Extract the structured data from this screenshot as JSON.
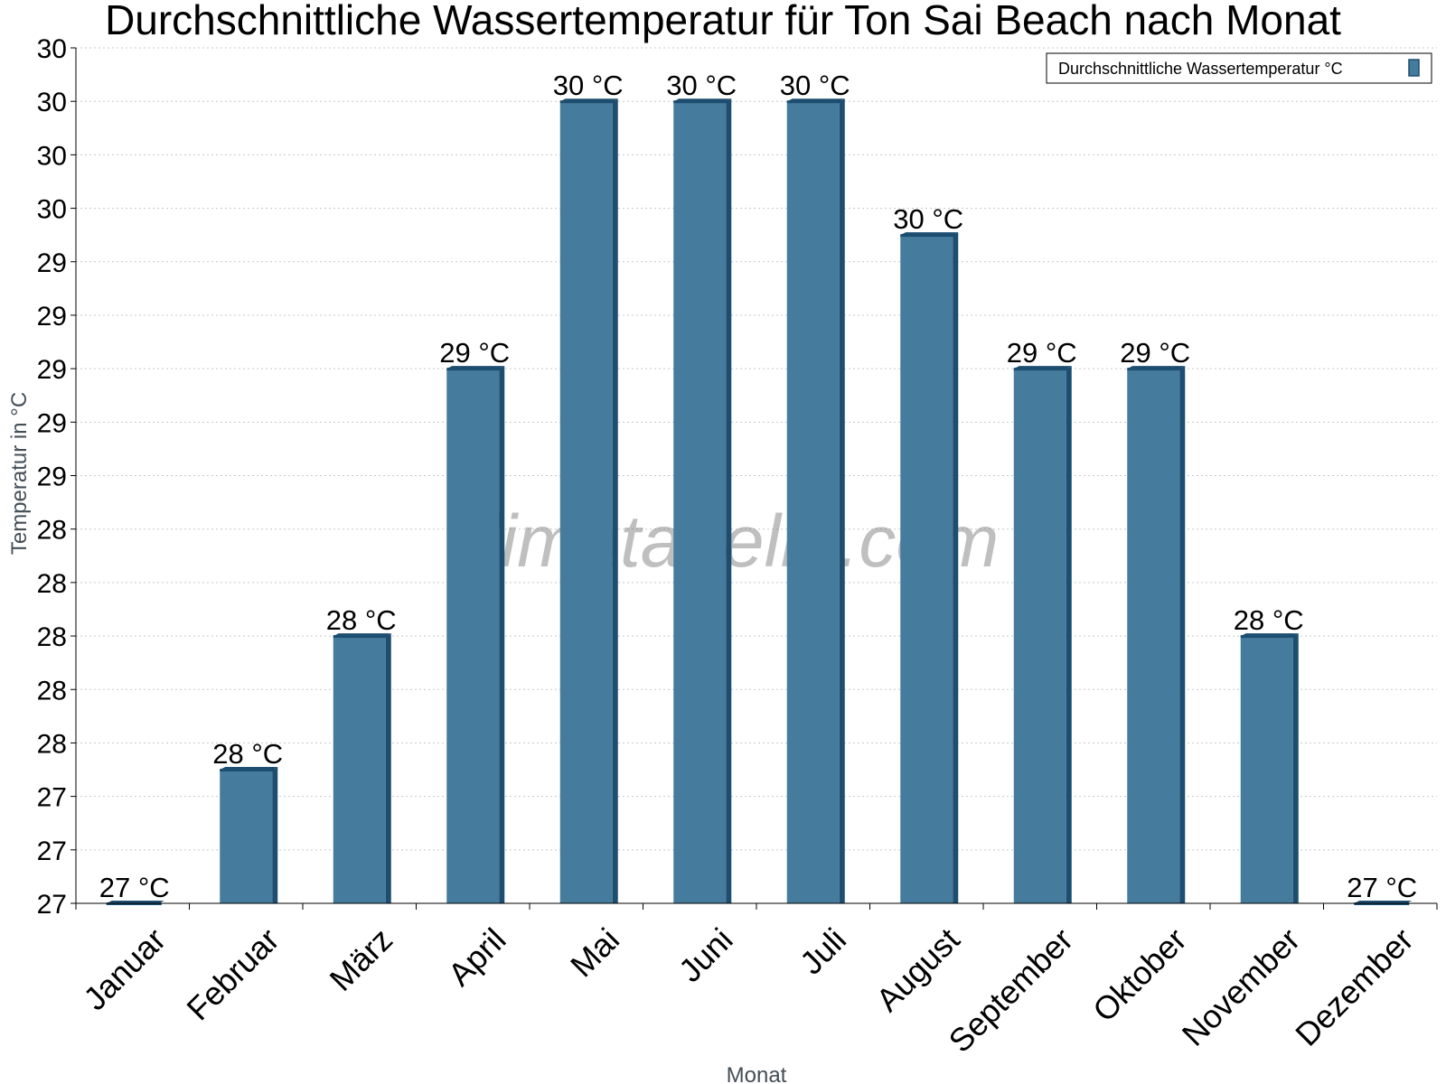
{
  "chart_data": {
    "type": "bar",
    "title": "Durchschnittliche Wassertemperatur für Ton Sai Beach nach Monat",
    "xlabel": "Monat",
    "ylabel": "Temperatur in °C",
    "categories": [
      "Januar",
      "Februar",
      "März",
      "April",
      "Mai",
      "Juni",
      "Juli",
      "August",
      "September",
      "Oktober",
      "November",
      "Dezember"
    ],
    "series": [
      {
        "name": "Durchschnittliche Wassertemperatur °C",
        "values": [
          27.0,
          27.5,
          28.0,
          29.0,
          30.0,
          30.0,
          30.0,
          29.5,
          29.0,
          29.0,
          28.0,
          27.0
        ],
        "labels": [
          "27 °C",
          "28 °C",
          "28 °C",
          "29 °C",
          "30 °C",
          "30 °C",
          "30 °C",
          "30 °C",
          "29 °C",
          "29 °C",
          "28 °C",
          "27 °C"
        ],
        "color": "#457b9d",
        "edge_color": "#1d4e70"
      }
    ],
    "ylim": [
      27.0,
      30.2
    ],
    "yticks": [
      27.0,
      27.2,
      27.4,
      27.6,
      27.8,
      28.0,
      28.2,
      28.4,
      28.6,
      28.8,
      29.0,
      29.2,
      29.4,
      29.6,
      29.8,
      30.0,
      30.2
    ],
    "ytick_labels": [
      "27",
      "27",
      "27",
      "28",
      "28",
      "28",
      "28",
      "28",
      "29",
      "29",
      "29",
      "29",
      "29",
      "30",
      "30",
      "30",
      "30"
    ],
    "grid": true,
    "legend_position": "top-right",
    "watermark": "klimatabelle.com"
  }
}
